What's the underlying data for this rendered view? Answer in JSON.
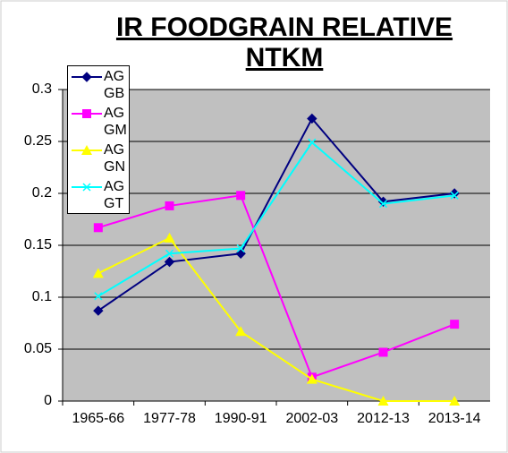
{
  "chart_data": {
    "type": "line",
    "title": "IR FOODGRAIN RELATIVE NTKM",
    "categories": [
      "1965-66",
      "1977-78",
      "1990-91",
      "2002-03",
      "2012-13",
      "2013-14"
    ],
    "series": [
      {
        "name": "AG GB",
        "color": "#000080",
        "marker": "diamond",
        "values": [
          0.087,
          0.134,
          0.142,
          0.272,
          0.192,
          0.2
        ]
      },
      {
        "name": "AG GM",
        "color": "#ff00ff",
        "marker": "square",
        "values": [
          0.167,
          0.188,
          0.198,
          0.023,
          0.047,
          0.074
        ]
      },
      {
        "name": "AG GN",
        "color": "#ffff00",
        "marker": "triangle",
        "values": [
          0.123,
          0.157,
          0.067,
          0.021,
          0,
          0
        ]
      },
      {
        "name": "AG GT",
        "color": "#00ffff",
        "marker": "x",
        "values": [
          0.101,
          0.142,
          0.147,
          0.249,
          0.19,
          0.198
        ]
      }
    ],
    "ylim": [
      0,
      0.3
    ],
    "yticks": [
      0,
      0.05,
      0.1,
      0.15,
      0.2,
      0.25,
      0.3
    ],
    "grid": true
  }
}
